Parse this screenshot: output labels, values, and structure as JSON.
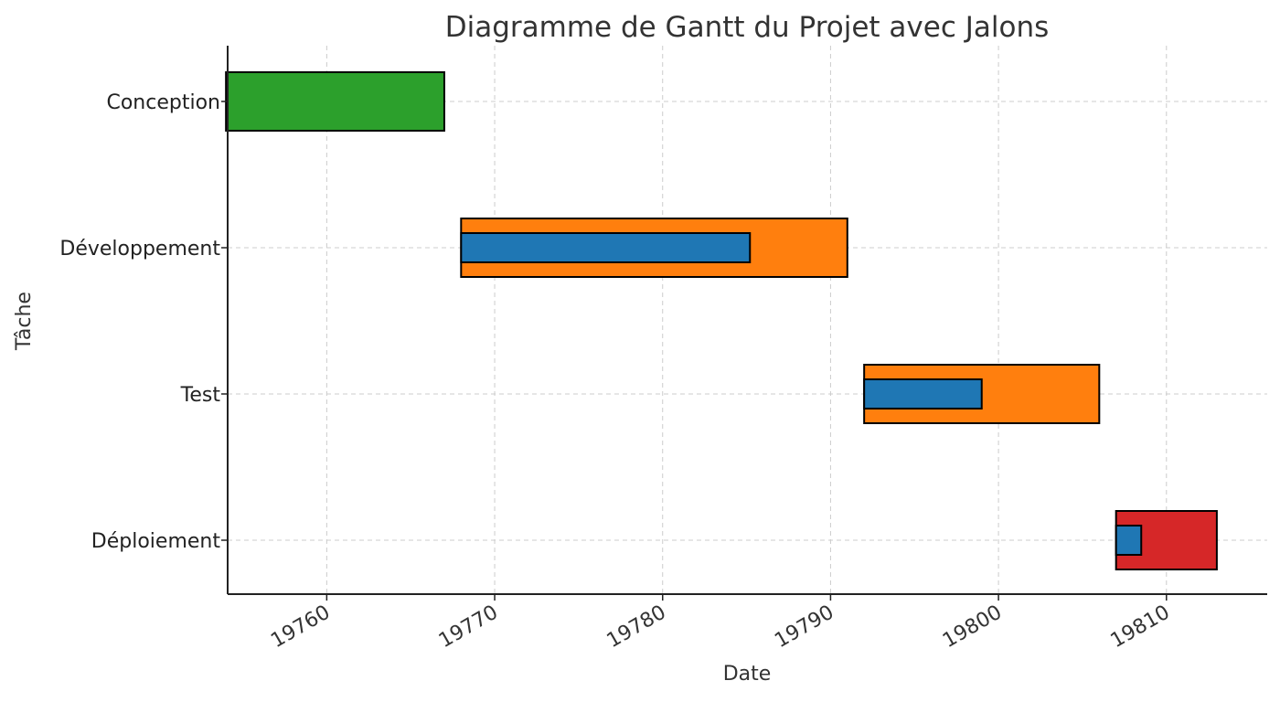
{
  "chart_data": {
    "type": "gantt",
    "title": "Diagramme de Gantt du Projet avec Jalons",
    "xlabel": "Date",
    "ylabel": "Tâche",
    "xlim": [
      19754.1,
      19816
    ],
    "x_ticks": [
      19760,
      19770,
      19780,
      19790,
      19800,
      19810
    ],
    "x_tick_labels": [
      "19760",
      "19770",
      "19780",
      "19790",
      "19800",
      "19810"
    ],
    "grid": true,
    "tasks": [
      {
        "label": "Conception",
        "start": 19754,
        "end": 19767,
        "color": "#2ca02c",
        "progress_end": null
      },
      {
        "label": "Développement",
        "start": 19768,
        "end": 19791,
        "color": "#ff7f0e",
        "progress_end": 19785.2
      },
      {
        "label": "Test",
        "start": 19792,
        "end": 19806,
        "color": "#ff7f0e",
        "progress_end": 19799
      },
      {
        "label": "Déploiement",
        "start": 19807,
        "end": 19813,
        "color": "#d62728",
        "progress_end": 19808.5
      }
    ],
    "progress_color": "#1f77b4"
  }
}
